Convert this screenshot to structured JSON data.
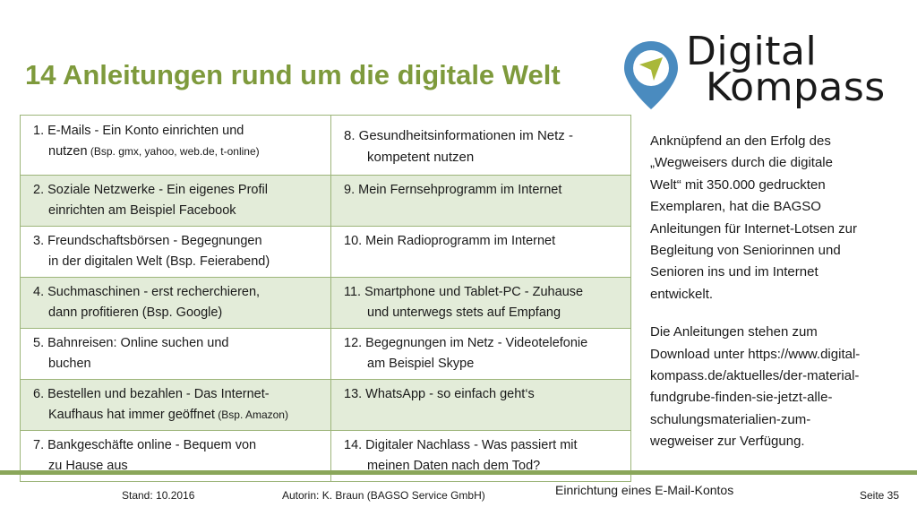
{
  "title": "14 Anleitungen rund um die digitale Welt",
  "logo": {
    "line1": "Digital",
    "line2": "Kompass",
    "colors": {
      "pin_outer": "#4a8bbf",
      "pin_inner": "#ffffff",
      "arrow": "#a9b83a"
    }
  },
  "colors": {
    "accent": "#7e9a3c",
    "band": "#e3ecd9",
    "border": "#9db57a",
    "rule": "#8aa65a"
  },
  "table": {
    "rows": [
      {
        "left": {
          "l1": "1. E-Mails - Ein Konto einrichten und",
          "l2": "nutzen",
          "l2_small": " (Bsp. gmx, yahoo, web.de, t-online)"
        },
        "right": {
          "l1": "8. Gesundheitsinformationen im Netz -",
          "l2": "kompetent nutzen"
        }
      },
      {
        "left": {
          "l1": "2. Soziale Netzwerke - Ein eigenes Profil",
          "l2": "einrichten am Beispiel Facebook"
        },
        "right": {
          "l1": "9. Mein Fernsehprogramm im Internet",
          "l2": ""
        }
      },
      {
        "left": {
          "l1": "3. Freundschaftsbörsen - Begegnungen",
          "l2": "in der digitalen Welt (Bsp. Feierabend)"
        },
        "right": {
          "l1": "10. Mein Radioprogramm im Internet",
          "l2": ""
        }
      },
      {
        "left": {
          "l1": "4. Suchmaschinen - erst recherchieren,",
          "l2": "dann profitieren (Bsp. Google)"
        },
        "right": {
          "l1": "11. Smartphone und Tablet-PC - Zuhause",
          "l2": "und unterwegs stets auf Empfang"
        }
      },
      {
        "left": {
          "l1": "5. Bahnreisen: Online suchen und",
          "l2": "buchen"
        },
        "right": {
          "l1": "12. Begegnungen im Netz - Videotelefonie",
          "l2": "am Beispiel Skype"
        }
      },
      {
        "left": {
          "l1": "6. Bestellen und bezahlen - Das Internet-",
          "l2": "Kaufhaus hat immer geöffnet",
          "l2_small": " (Bsp. Amazon)"
        },
        "right": {
          "l1": "13. WhatsApp - so einfach geht‘s",
          "l2": ""
        }
      },
      {
        "left": {
          "l1": "7. Bankgeschäfte online - Bequem von",
          "l2": "zu Hause aus"
        },
        "right": {
          "l1": "14. Digitaler Nachlass - Was passiert mit",
          "l2": "meinen Daten nach dem Tod?"
        }
      }
    ]
  },
  "side": {
    "p1": [
      "Anknüpfend an den Erfolg des",
      "„Wegweisers durch die digitale",
      "Welt“ mit 350.000 gedruckten",
      "Exemplaren, hat die BAGSO",
      "Anleitungen für Internet-Lotsen zur",
      "Begleitung von Seniorinnen und",
      "Senioren ins und im Internet",
      "entwickelt."
    ],
    "p2": [
      "Die Anleitungen stehen zum",
      "Download unter https://www.digital-",
      "kompass.de/aktuelles/der-material-",
      "fundgrube-finden-sie-jetzt-alle-",
      "schulungsmaterialien-zum-",
      "wegweiser zur Verfügung."
    ]
  },
  "footer": {
    "stand": "Stand: 10.2016",
    "autorin": "Autorin: K. Braun (BAGSO Service GmbH)",
    "topic": "Einrichtung eines E-Mail-Kontos",
    "page": "Seite 35"
  }
}
